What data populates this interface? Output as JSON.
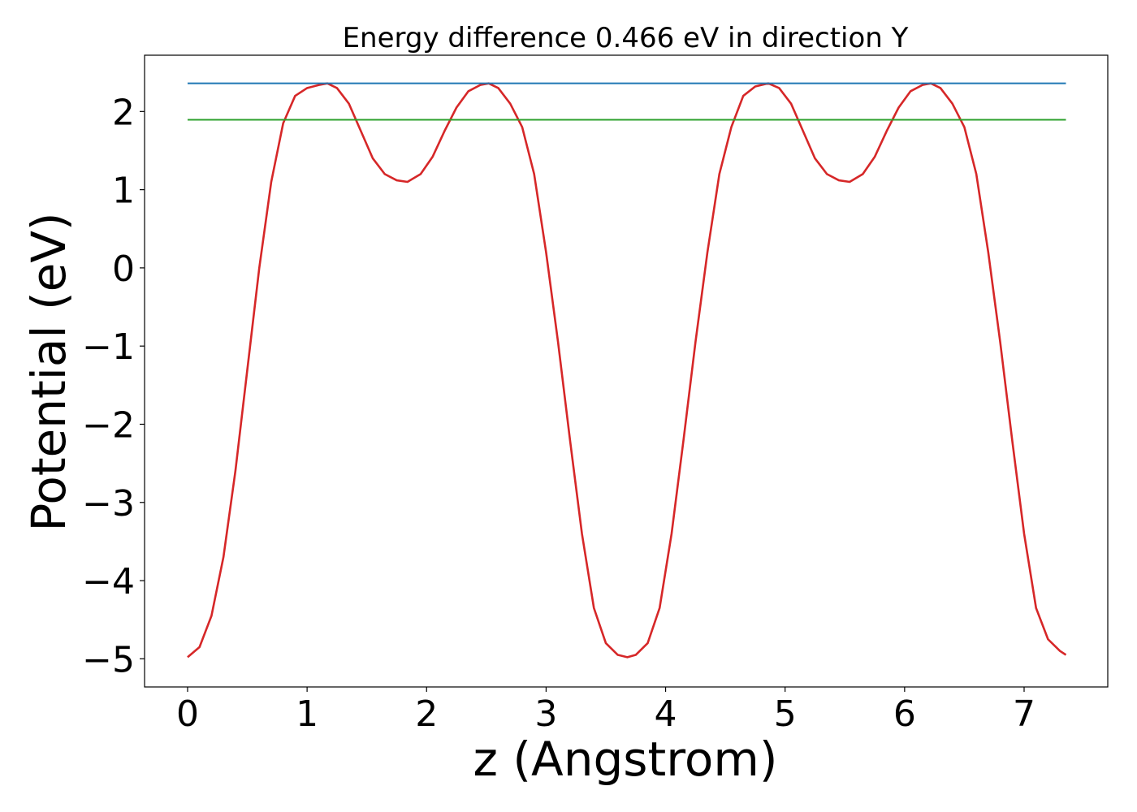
{
  "chart_data": {
    "type": "line",
    "title": "Energy difference 0.466 eV in direction Y",
    "xlabel": "z (Angstrom)",
    "ylabel": "Potential (eV)",
    "xlim": [
      -0.36,
      7.7
    ],
    "ylim": [
      -5.36,
      2.72
    ],
    "grid": false,
    "x_ticks": [
      0,
      1,
      2,
      3,
      4,
      5,
      6,
      7
    ],
    "x_tick_labels": [
      "0",
      "1",
      "2",
      "3",
      "4",
      "5",
      "6",
      "7"
    ],
    "y_ticks": [
      2,
      1,
      0,
      -1,
      -2,
      -3,
      -4,
      -5
    ],
    "y_tick_labels": [
      "2",
      "1",
      "0",
      "−1",
      "−2",
      "−3",
      "−4",
      "−5"
    ],
    "series": [
      {
        "color": "#d62728",
        "style": "line",
        "x": [
          0.0,
          0.1,
          0.2,
          0.3,
          0.4,
          0.5,
          0.6,
          0.7,
          0.8,
          0.9,
          1.0,
          1.1,
          1.17,
          1.25,
          1.35,
          1.45,
          1.55,
          1.65,
          1.75,
          1.84,
          1.95,
          2.05,
          2.15,
          2.25,
          2.35,
          2.45,
          2.52,
          2.6,
          2.7,
          2.8,
          2.9,
          3.0,
          3.1,
          3.2,
          3.3,
          3.4,
          3.5,
          3.6,
          3.68,
          3.75,
          3.85,
          3.95,
          4.05,
          4.15,
          4.25,
          4.35,
          4.45,
          4.55,
          4.65,
          4.75,
          4.86,
          4.95,
          5.05,
          5.15,
          5.25,
          5.35,
          5.45,
          5.54,
          5.65,
          5.75,
          5.85,
          5.95,
          6.05,
          6.15,
          6.22,
          6.3,
          6.4,
          6.5,
          6.6,
          6.7,
          6.8,
          6.9,
          7.0,
          7.1,
          7.2,
          7.3,
          7.35
        ],
        "y": [
          -4.98,
          -4.85,
          -4.45,
          -3.7,
          -2.6,
          -1.3,
          0.0,
          1.1,
          1.85,
          2.2,
          2.3,
          2.34,
          2.36,
          2.3,
          2.1,
          1.75,
          1.4,
          1.2,
          1.12,
          1.1,
          1.2,
          1.42,
          1.75,
          2.05,
          2.26,
          2.34,
          2.36,
          2.3,
          2.1,
          1.8,
          1.2,
          0.2,
          -0.95,
          -2.2,
          -3.4,
          -4.35,
          -4.8,
          -4.95,
          -4.98,
          -4.95,
          -4.8,
          -4.35,
          -3.4,
          -2.2,
          -0.95,
          0.2,
          1.2,
          1.8,
          2.2,
          2.32,
          2.36,
          2.3,
          2.1,
          1.75,
          1.4,
          1.2,
          1.12,
          1.1,
          1.2,
          1.42,
          1.75,
          2.05,
          2.26,
          2.34,
          2.36,
          2.3,
          2.1,
          1.8,
          1.2,
          0.2,
          -0.95,
          -2.2,
          -3.4,
          -4.35,
          -4.75,
          -4.9,
          -4.95
        ]
      },
      {
        "color": "#1f77b4",
        "style": "hline",
        "x": [
          0.0,
          7.35
        ],
        "y": [
          2.36,
          2.36
        ]
      },
      {
        "color": "#2ca02c",
        "style": "hline",
        "x": [
          0.0,
          7.35
        ],
        "y": [
          1.894,
          1.894
        ]
      }
    ]
  }
}
